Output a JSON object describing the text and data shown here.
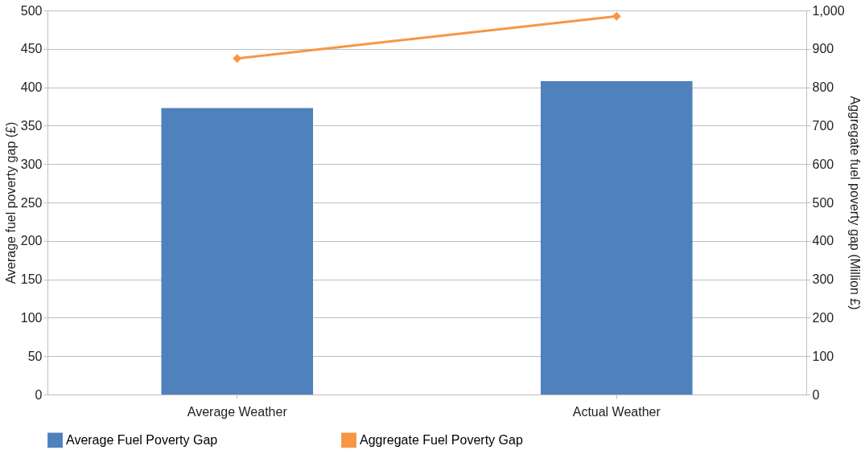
{
  "chart_data": {
    "type": "bar",
    "ylabel": "Average fuel poverty gap (£)",
    "y2label": "Aggregate fuel poverty gap (Million £)",
    "categories": [
      "Average Weather",
      "Actual Weather"
    ],
    "series": [
      {
        "name": "Average Fuel Poverty Gap",
        "color": "#4f81bd",
        "values": [
          373,
          408
        ]
      },
      {
        "name": "Aggregate Fuel Poverty Gap",
        "color": "#f79646",
        "values": [
          875,
          985
        ],
        "type": "line",
        "axis": "y2",
        "marker": "diamond"
      }
    ],
    "ylim": [
      0,
      500
    ],
    "yticks": [
      0,
      50,
      100,
      150,
      200,
      250,
      300,
      350,
      400,
      450,
      500
    ],
    "y2lim": [
      0,
      1000
    ],
    "y2ticks": [
      0,
      {
        "value": 100,
        "label": "100"
      },
      200,
      300,
      400,
      500,
      600,
      700,
      800,
      900,
      {
        "value": 1000,
        "label": "1,000"
      }
    ],
    "grid": "y",
    "legend": "bottom"
  }
}
